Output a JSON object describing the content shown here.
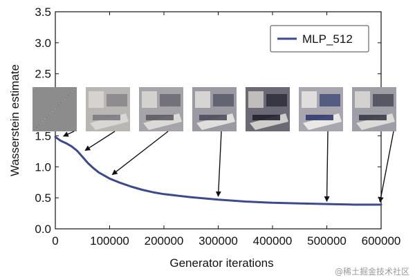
{
  "chart_data": {
    "type": "line",
    "title": "",
    "xlabel": "Generator iterations",
    "ylabel": "Wasserstein estimate",
    "xlim": [
      0,
      600000
    ],
    "ylim": [
      0.0,
      3.5
    ],
    "xticks": [
      0,
      100000,
      200000,
      300000,
      400000,
      500000,
      600000
    ],
    "xtick_labels": [
      "0",
      "100000",
      "200000",
      "300000",
      "400000",
      "500000",
      "600000"
    ],
    "yticks": [
      0.0,
      0.5,
      1.0,
      1.5,
      2.0,
      2.5,
      3.0,
      3.5
    ],
    "ytick_labels": [
      "0.0",
      "0.5",
      "1.0",
      "1.5",
      "2.0",
      "2.5",
      "3.0",
      "3.5"
    ],
    "grid": false,
    "legend": {
      "placement": "top-right",
      "entries": [
        "MLP_512"
      ]
    },
    "series": [
      {
        "name": "MLP_512",
        "color": "#3b4a8c",
        "x": [
          0,
          10000,
          20000,
          30000,
          40000,
          50000,
          60000,
          70000,
          80000,
          90000,
          100000,
          120000,
          140000,
          160000,
          180000,
          200000,
          250000,
          300000,
          350000,
          400000,
          450000,
          500000,
          550000,
          600000
        ],
        "y": [
          1.48,
          1.42,
          1.38,
          1.33,
          1.26,
          1.16,
          1.06,
          0.98,
          0.91,
          0.86,
          0.81,
          0.74,
          0.68,
          0.63,
          0.59,
          0.56,
          0.51,
          0.47,
          0.44,
          0.42,
          0.41,
          0.4,
          0.39,
          0.39
        ]
      }
    ],
    "annotations": [
      {
        "type": "sample-image",
        "image": "noise",
        "arrow_to": {
          "x": 15000,
          "y": 1.45
        }
      },
      {
        "type": "sample-image",
        "image": "bedroom-sample-1",
        "arrow_to": {
          "x": 55000,
          "y": 1.22
        }
      },
      {
        "type": "sample-image",
        "image": "bedroom-sample-2",
        "arrow_to": {
          "x": 105000,
          "y": 0.83
        }
      },
      {
        "type": "sample-image",
        "image": "bedroom-sample-3",
        "arrow_to": {
          "x": 300000,
          "y": 0.48
        }
      },
      {
        "type": "sample-image",
        "image": "bedroom-sample-4",
        "arrow_to": null
      },
      {
        "type": "sample-image",
        "image": "bedroom-sample-5",
        "arrow_to": {
          "x": 500000,
          "y": 0.4
        }
      },
      {
        "type": "sample-image",
        "image": "bedroom-sample-6",
        "arrow_to": {
          "x": 598000,
          "y": 0.39
        }
      }
    ]
  },
  "watermark": "@稀土掘金技术社区"
}
